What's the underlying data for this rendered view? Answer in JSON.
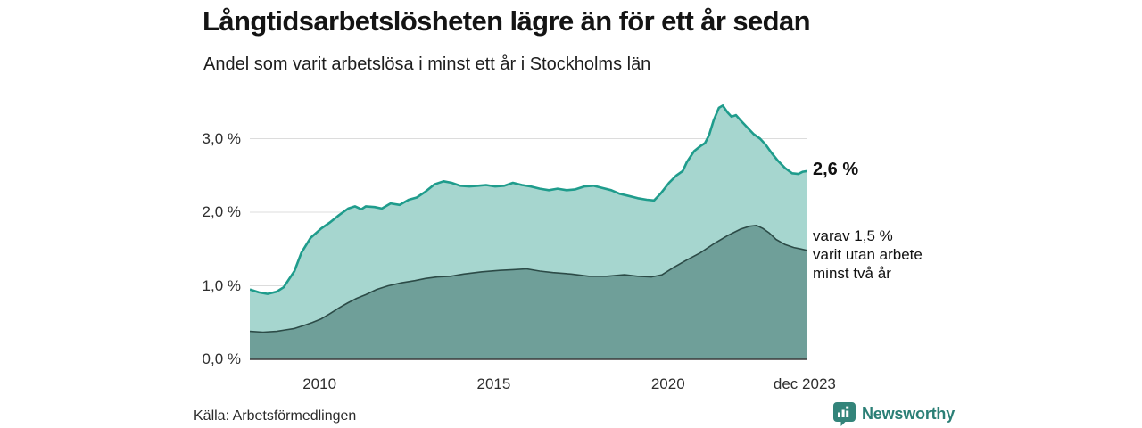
{
  "chart_data": {
    "type": "area",
    "title": "Långtidsarbetslösheten lägre än för ett år sedan",
    "subtitle": "Andel som varit arbetslösa i minst ett år i Stockholms län",
    "source": "Källa: Arbetsförmedlingen",
    "x_range": [
      2008,
      2024
    ],
    "ylim": [
      0,
      3.6
    ],
    "grid": true,
    "legend_position": "right-annotations",
    "y_ticks": [
      {
        "label": "3,0 %",
        "value": 3.0
      },
      {
        "label": "2,0 %",
        "value": 2.0
      },
      {
        "label": "1,0 %",
        "value": 1.0
      },
      {
        "label": "0,0 %",
        "value": 0.0
      }
    ],
    "x_ticks": [
      {
        "label": "2010",
        "year": 2010
      },
      {
        "label": "2015",
        "year": 2015
      },
      {
        "label": "2020",
        "year": 2020
      },
      {
        "label": "dec 2023",
        "year": 2023.92
      }
    ],
    "series": [
      {
        "name": "Andel som varit arbetslösa i minst ett år",
        "end_value": 2.6,
        "fill": "#a6d6cf",
        "stroke": "#1f9c8c",
        "stroke_width": 2.6,
        "x": [
          2008.0,
          2008.26,
          2008.51,
          2008.77,
          2008.97,
          2009.28,
          2009.48,
          2009.74,
          2010.05,
          2010.3,
          2010.56,
          2010.82,
          2011.02,
          2011.2,
          2011.33,
          2011.58,
          2011.79,
          2012.04,
          2012.3,
          2012.56,
          2012.79,
          2013.04,
          2013.3,
          2013.56,
          2013.79,
          2014.04,
          2014.3,
          2014.55,
          2014.78,
          2015.04,
          2015.3,
          2015.55,
          2015.81,
          2016.06,
          2016.32,
          2016.58,
          2016.83,
          2017.09,
          2017.34,
          2017.6,
          2017.86,
          2018.11,
          2018.37,
          2018.62,
          2018.88,
          2019.13,
          2019.39,
          2019.6,
          2019.78,
          2020.03,
          2020.24,
          2020.42,
          2020.54,
          2020.75,
          2020.93,
          2021.06,
          2021.18,
          2021.31,
          2021.46,
          2021.57,
          2021.7,
          2021.82,
          2021.95,
          2022.08,
          2022.28,
          2022.46,
          2022.64,
          2022.8,
          2022.98,
          2023.15,
          2023.36,
          2023.56,
          2023.74,
          2023.87,
          2024.0
        ],
        "y": [
          0.95,
          0.91,
          0.89,
          0.92,
          0.98,
          1.2,
          1.45,
          1.65,
          1.78,
          1.86,
          1.96,
          2.05,
          2.08,
          2.04,
          2.08,
          2.07,
          2.05,
          2.12,
          2.1,
          2.17,
          2.2,
          2.28,
          2.38,
          2.42,
          2.4,
          2.36,
          2.35,
          2.36,
          2.37,
          2.35,
          2.36,
          2.4,
          2.37,
          2.35,
          2.32,
          2.3,
          2.32,
          2.3,
          2.31,
          2.35,
          2.36,
          2.33,
          2.3,
          2.25,
          2.22,
          2.19,
          2.17,
          2.16,
          2.25,
          2.4,
          2.5,
          2.56,
          2.68,
          2.83,
          2.9,
          2.94,
          3.05,
          3.25,
          3.42,
          3.45,
          3.36,
          3.3,
          3.32,
          3.25,
          3.15,
          3.06,
          3.0,
          2.92,
          2.8,
          2.7,
          2.6,
          2.53,
          2.52,
          2.55,
          2.56
        ]
      },
      {
        "name": "varav varit utan arbete minst två år",
        "end_value": 1.5,
        "fill": "#6f9f99",
        "stroke": "#2c4b47",
        "stroke_width": 1.6,
        "x": [
          2008.0,
          2008.38,
          2008.77,
          2009.02,
          2009.28,
          2009.54,
          2009.79,
          2010.05,
          2010.3,
          2010.56,
          2010.82,
          2011.07,
          2011.33,
          2011.64,
          2011.97,
          2012.35,
          2012.74,
          2013.04,
          2013.38,
          2013.76,
          2014.14,
          2014.66,
          2015.17,
          2015.55,
          2015.94,
          2016.32,
          2016.7,
          2017.22,
          2017.73,
          2018.24,
          2018.75,
          2019.13,
          2019.52,
          2019.83,
          2020.16,
          2020.54,
          2020.93,
          2021.31,
          2021.7,
          2022.08,
          2022.34,
          2022.54,
          2022.72,
          2022.9,
          2023.1,
          2023.36,
          2023.61,
          2023.82,
          2024.0
        ],
        "y": [
          0.38,
          0.37,
          0.38,
          0.4,
          0.42,
          0.46,
          0.5,
          0.55,
          0.62,
          0.7,
          0.77,
          0.83,
          0.88,
          0.95,
          1.0,
          1.04,
          1.07,
          1.1,
          1.12,
          1.13,
          1.16,
          1.19,
          1.21,
          1.22,
          1.23,
          1.2,
          1.18,
          1.16,
          1.13,
          1.13,
          1.15,
          1.13,
          1.12,
          1.15,
          1.25,
          1.35,
          1.45,
          1.57,
          1.68,
          1.77,
          1.81,
          1.82,
          1.78,
          1.72,
          1.63,
          1.56,
          1.52,
          1.5,
          1.48
        ]
      }
    ],
    "annotations": {
      "end_value_label": "2,6 %",
      "secondary_label_lines": [
        "varav 1,5 %",
        "varit utan arbete",
        "minst två år"
      ]
    },
    "style": {
      "gridline_color": "#dcdcdc",
      "axis_line_color": "#3a3a3a",
      "tick_label_color": "#2e2e2e"
    }
  },
  "brand": {
    "name": "Newsworthy",
    "color": "#2b7f76",
    "icon_bg": "#33847a"
  }
}
